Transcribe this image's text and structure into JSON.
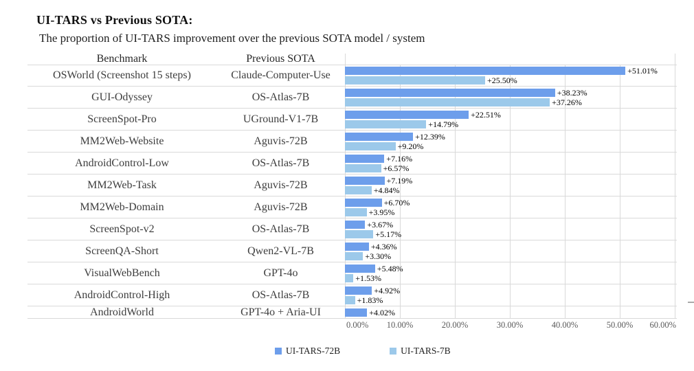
{
  "title": "UI-TARS vs Previous SOTA:",
  "subtitle": "The proportion of UI-TARS improvement over the previous SOTA model / system",
  "table": {
    "benchmark_header": "Benchmark",
    "previous_sota_header": "Previous SOTA"
  },
  "legend": {
    "series1": "UI-TARS-72B",
    "series2": "UI-TARS-7B"
  },
  "colors": {
    "series1": "#6D9EEB",
    "series2": "#9CC9EA",
    "gridline": "#D9D9D9",
    "axis_text": "#595959"
  },
  "chart_data": {
    "type": "bar",
    "orientation": "horizontal",
    "title": "UI-TARS vs Previous SOTA:",
    "subtitle": "The proportion of UI-TARS improvement over the previous SOTA model / system",
    "xlabel": "",
    "ylabel": "",
    "xlim": [
      0,
      60
    ],
    "x_ticks": [
      "0.00%",
      "10.00%",
      "20.00%",
      "30.00%",
      "40.00%",
      "50.00%",
      "60.00%"
    ],
    "grid": true,
    "legend_position": "bottom",
    "series": [
      {
        "name": "UI-TARS-72B",
        "color": "#6D9EEB"
      },
      {
        "name": "UI-TARS-7B",
        "color": "#9CC9EA"
      }
    ],
    "rows": [
      {
        "benchmark": "OSWorld (Screenshot 15 steps)",
        "previous_sota": "Claude-Computer-Use",
        "ui_tars_72b": 51.01,
        "ui_tars_72b_label": "+51.01%",
        "ui_tars_7b": 25.5,
        "ui_tars_7b_label": "+25.50%"
      },
      {
        "benchmark": "GUI-Odyssey",
        "previous_sota": "OS-Atlas-7B",
        "ui_tars_72b": 38.23,
        "ui_tars_72b_label": "+38.23%",
        "ui_tars_7b": 37.26,
        "ui_tars_7b_label": "+37.26%"
      },
      {
        "benchmark": "ScreenSpot-Pro",
        "previous_sota": "UGround-V1-7B",
        "ui_tars_72b": 22.51,
        "ui_tars_72b_label": "+22.51%",
        "ui_tars_7b": 14.79,
        "ui_tars_7b_label": "+14.79%"
      },
      {
        "benchmark": "MM2Web-Website",
        "previous_sota": "Aguvis-72B",
        "ui_tars_72b": 12.39,
        "ui_tars_72b_label": "+12.39%",
        "ui_tars_7b": 9.2,
        "ui_tars_7b_label": "+9.20%"
      },
      {
        "benchmark": "AndroidControl-Low",
        "previous_sota": "OS-Atlas-7B",
        "ui_tars_72b": 7.16,
        "ui_tars_72b_label": "+7.16%",
        "ui_tars_7b": 6.57,
        "ui_tars_7b_label": "+6.57%"
      },
      {
        "benchmark": "MM2Web-Task",
        "previous_sota": "Aguvis-72B",
        "ui_tars_72b": 7.19,
        "ui_tars_72b_label": "+7.19%",
        "ui_tars_7b": 4.84,
        "ui_tars_7b_label": "+4.84%"
      },
      {
        "benchmark": "MM2Web-Domain",
        "previous_sota": "Aguvis-72B",
        "ui_tars_72b": 6.7,
        "ui_tars_72b_label": "+6.70%",
        "ui_tars_7b": 3.95,
        "ui_tars_7b_label": "+3.95%"
      },
      {
        "benchmark": "ScreenSpot-v2",
        "previous_sota": "OS-Atlas-7B",
        "ui_tars_72b": 3.67,
        "ui_tars_72b_label": "+3.67%",
        "ui_tars_7b": 5.17,
        "ui_tars_7b_label": "+5.17%"
      },
      {
        "benchmark": "ScreenQA-Short",
        "previous_sota": "Qwen2-VL-7B",
        "ui_tars_72b": 4.36,
        "ui_tars_72b_label": "+4.36%",
        "ui_tars_7b": 3.3,
        "ui_tars_7b_label": "+3.30%"
      },
      {
        "benchmark": "VisualWebBench",
        "previous_sota": "GPT-4o",
        "ui_tars_72b": 5.48,
        "ui_tars_72b_label": "+5.48%",
        "ui_tars_7b": 1.53,
        "ui_tars_7b_label": "+1.53%"
      },
      {
        "benchmark": "AndroidControl-High",
        "previous_sota": "OS-Atlas-7B",
        "ui_tars_72b": 4.92,
        "ui_tars_72b_label": "+4.92%",
        "ui_tars_7b": 1.83,
        "ui_tars_7b_label": "+1.83%"
      },
      {
        "benchmark": "AndroidWorld",
        "previous_sota": "GPT-4o + Aria-UI",
        "ui_tars_72b": 4.02,
        "ui_tars_72b_label": "+4.02%",
        "ui_tars_7b": null,
        "ui_tars_7b_label": null
      }
    ]
  }
}
